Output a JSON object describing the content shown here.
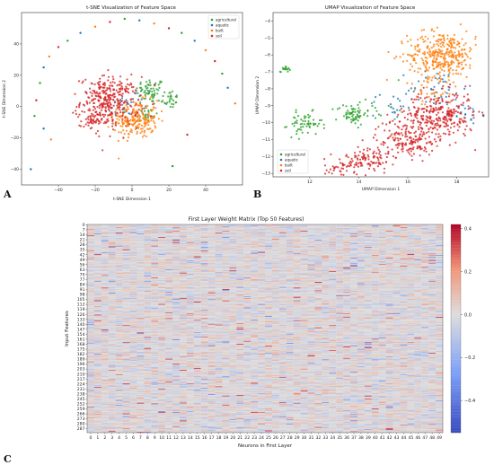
{
  "panels": {
    "A": "A",
    "B": "B",
    "C": "C"
  },
  "chart_data": [
    {
      "type": "scatter",
      "title": "t-SNE Visualization of Feature Space",
      "xlabel": "t-SNE Dimension 1",
      "ylabel": "t-SNE Dimension 2",
      "xlim": [
        -60,
        60
      ],
      "ylim": [
        -50,
        60
      ],
      "xticks": [
        -40,
        -20,
        0,
        20,
        40
      ],
      "yticks": [
        -40,
        -20,
        0,
        20,
        40
      ],
      "legend_position": "top-right",
      "grid": false,
      "series": [
        {
          "name": "agricultural",
          "color": "#2ca02c",
          "clusters": [
            [
              10,
              10,
              4,
              60
            ],
            [
              20,
              5,
              3,
              30
            ],
            [
              8,
              -5,
              3,
              20
            ]
          ]
        },
        {
          "name": "aquatic",
          "color": "#1f77b4",
          "clusters": [
            [
              -5,
              -2,
              5,
              15
            ],
            [
              0,
              2,
              6,
              15
            ]
          ]
        },
        {
          "name": "built",
          "color": "#ff7f0e",
          "clusters": [
            [
              2,
              -8,
              6,
              220
            ]
          ]
        },
        {
          "name": "soil",
          "color": "#d62728",
          "clusters": [
            [
              -12,
              3,
              8,
              300
            ],
            [
              -22,
              -10,
              3,
              40
            ],
            [
              -16,
              8,
              4,
              40
            ]
          ]
        }
      ],
      "ring": {
        "color_sequence": [
          "#2ca02c",
          "#1f77b4",
          "#ff7f0e",
          "#d62728"
        ],
        "points": [
          [
            -50,
            15
          ],
          [
            -48,
            25
          ],
          [
            -45,
            32
          ],
          [
            -40,
            38
          ],
          [
            -35,
            42
          ],
          [
            -28,
            47
          ],
          [
            -20,
            51
          ],
          [
            -12,
            54
          ],
          [
            -4,
            56
          ],
          [
            4,
            55
          ],
          [
            12,
            53
          ],
          [
            20,
            50
          ],
          [
            27,
            47
          ],
          [
            34,
            42
          ],
          [
            40,
            36
          ],
          [
            45,
            29
          ],
          [
            49,
            21
          ],
          [
            52,
            12
          ],
          [
            56,
            2
          ],
          [
            -52,
            4
          ],
          [
            -53,
            -6
          ],
          [
            -48,
            -14
          ],
          [
            -44,
            -21
          ],
          [
            30,
            -18
          ],
          [
            22,
            -38
          ],
          [
            -55,
            -40
          ]
        ]
      }
    },
    {
      "type": "scatter",
      "title": "UMAP Visualization of Feature Space",
      "xlabel": "UMAP Dimension 1",
      "ylabel": "UMAP Dimension 2",
      "xlim": [
        10.5,
        19.3
      ],
      "ylim": [
        -13.2,
        -3.5
      ],
      "xticks": [
        12,
        14,
        16,
        18
      ],
      "yticks": [
        -13,
        -12,
        -11,
        -10,
        -9,
        -8,
        -7,
        -6,
        -5,
        -4
      ],
      "legend_position": "bottom-left",
      "grid": false,
      "series": [
        {
          "name": "agricultural",
          "color": "#2ca02c",
          "clusters": [
            [
              11.0,
              -6.8,
              0.1,
              15
            ],
            [
              11.8,
              -10.1,
              0.35,
              60
            ],
            [
              13.7,
              -9.5,
              0.3,
              60
            ],
            [
              14.8,
              -9.2,
              0.5,
              20
            ]
          ]
        },
        {
          "name": "aquatic",
          "color": "#1f77b4",
          "clusters": [
            [
              17.2,
              -8.0,
              0.6,
              40
            ],
            [
              15.5,
              -8.8,
              0.5,
              20
            ],
            [
              18.4,
              -9.5,
              0.3,
              20
            ]
          ]
        },
        {
          "name": "built",
          "color": "#ff7f0e",
          "clusters": [
            [
              17.4,
              -6.0,
              0.7,
              350
            ],
            [
              16.8,
              -8.3,
              0.4,
              30
            ]
          ]
        },
        {
          "name": "soil",
          "color": "#d62728",
          "clusters": [
            [
              17.3,
              -9.6,
              0.7,
              300
            ],
            [
              15.8,
              -10.9,
              0.55,
              140
            ],
            [
              14.4,
              -12.2,
              0.45,
              100
            ],
            [
              13.2,
              -12.7,
              0.3,
              40
            ],
            [
              16.5,
              -11.3,
              0.3,
              30
            ]
          ]
        }
      ]
    },
    {
      "type": "heatmap",
      "title": "First Layer Weight Matrix (Top 50 Features)",
      "xlabel": "Neurons in First Layer",
      "ylabel": "Input Features",
      "n_columns": 50,
      "n_rows": 293,
      "xticks": [
        "0",
        "1",
        "2",
        "3",
        "4",
        "5",
        "6",
        "7",
        "8",
        "9",
        "10",
        "11",
        "12",
        "13",
        "14",
        "15",
        "16",
        "17",
        "18",
        "19",
        "20",
        "21",
        "22",
        "23",
        "24",
        "25",
        "26",
        "27",
        "28",
        "29",
        "30",
        "31",
        "32",
        "33",
        "34",
        "35",
        "36",
        "37",
        "38",
        "39",
        "40",
        "41",
        "42",
        "43",
        "44",
        "45",
        "46",
        "47",
        "48",
        "49"
      ],
      "yticks": [
        "0",
        "7",
        "14",
        "21",
        "28",
        "35",
        "42",
        "49",
        "56",
        "63",
        "70",
        "77",
        "84",
        "91",
        "98",
        "105",
        "112",
        "119",
        "126",
        "133",
        "140",
        "147",
        "154",
        "161",
        "168",
        "175",
        "182",
        "189",
        "196",
        "203",
        "210",
        "217",
        "224",
        "231",
        "238",
        "245",
        "252",
        "259",
        "266",
        "273",
        "280",
        "287"
      ],
      "colormap": "coolwarm",
      "vmin": -0.55,
      "vmax": 0.42,
      "colorbar_ticks": [
        "0.4",
        "0.2",
        "0.0",
        "−0.2",
        "−0.4"
      ],
      "colorbar_values": [
        0.4,
        0.2,
        0.0,
        -0.2,
        -0.4
      ]
    }
  ]
}
